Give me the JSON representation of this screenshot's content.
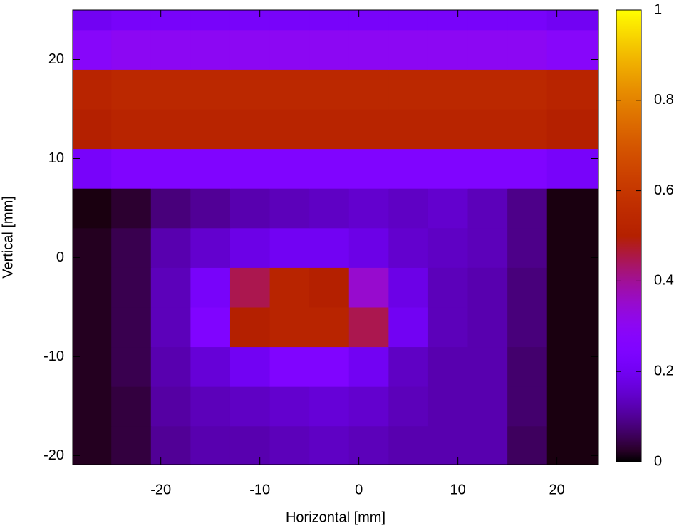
{
  "chart_data": {
    "type": "heatmap",
    "xlabel": "Horizontal [mm]",
    "ylabel": "Vertical [mm]",
    "xlim": [
      -28.9,
      24.2
    ],
    "ylim": [
      -20.9,
      25
    ],
    "xticks": [
      -20,
      -10,
      0,
      10,
      20
    ],
    "yticks": [
      -20,
      -10,
      0,
      10,
      20
    ],
    "xbins": [
      -28.9,
      -25,
      -21,
      -17,
      -13,
      -9,
      -5,
      -1,
      3,
      7,
      11,
      15,
      19,
      24.2
    ],
    "ybins": [
      -20.9,
      -17,
      -13,
      -9,
      -5,
      -1,
      3,
      7,
      11,
      15,
      19,
      23,
      25
    ],
    "z": [
      [
        0.02,
        0.04,
        0.1,
        0.12,
        0.12,
        0.13,
        0.14,
        0.13,
        0.12,
        0.12,
        0.12,
        0.06,
        0.01
      ],
      [
        0.02,
        0.04,
        0.11,
        0.13,
        0.14,
        0.15,
        0.16,
        0.15,
        0.13,
        0.12,
        0.12,
        0.07,
        0.01
      ],
      [
        0.02,
        0.05,
        0.12,
        0.16,
        0.2,
        0.25,
        0.25,
        0.2,
        0.14,
        0.12,
        0.12,
        0.07,
        0.01
      ],
      [
        0.02,
        0.05,
        0.13,
        0.25,
        0.5,
        0.52,
        0.52,
        0.45,
        0.2,
        0.13,
        0.12,
        0.08,
        0.01
      ],
      [
        0.02,
        0.05,
        0.13,
        0.22,
        0.45,
        0.52,
        0.5,
        0.35,
        0.18,
        0.13,
        0.12,
        0.08,
        0.01
      ],
      [
        0.02,
        0.05,
        0.12,
        0.15,
        0.18,
        0.2,
        0.2,
        0.18,
        0.15,
        0.14,
        0.13,
        0.09,
        0.01
      ],
      [
        0.01,
        0.03,
        0.08,
        0.1,
        0.12,
        0.13,
        0.14,
        0.15,
        0.14,
        0.15,
        0.13,
        0.09,
        0.01
      ],
      [
        0.22,
        0.25,
        0.25,
        0.25,
        0.25,
        0.25,
        0.25,
        0.25,
        0.25,
        0.25,
        0.25,
        0.25,
        0.22
      ],
      [
        0.5,
        0.52,
        0.52,
        0.52,
        0.52,
        0.52,
        0.52,
        0.52,
        0.52,
        0.52,
        0.52,
        0.52,
        0.5
      ],
      [
        0.52,
        0.54,
        0.54,
        0.54,
        0.54,
        0.54,
        0.54,
        0.54,
        0.54,
        0.54,
        0.54,
        0.54,
        0.52
      ],
      [
        0.28,
        0.3,
        0.3,
        0.3,
        0.3,
        0.3,
        0.3,
        0.3,
        0.3,
        0.3,
        0.3,
        0.3,
        0.28
      ],
      [
        0.2,
        0.22,
        0.22,
        0.22,
        0.22,
        0.22,
        0.22,
        0.22,
        0.22,
        0.22,
        0.22,
        0.22,
        0.2
      ]
    ],
    "colorbar": {
      "lim": [
        0,
        1
      ],
      "ticks": [
        0,
        0.2,
        0.4,
        0.6,
        0.8,
        1
      ]
    }
  }
}
